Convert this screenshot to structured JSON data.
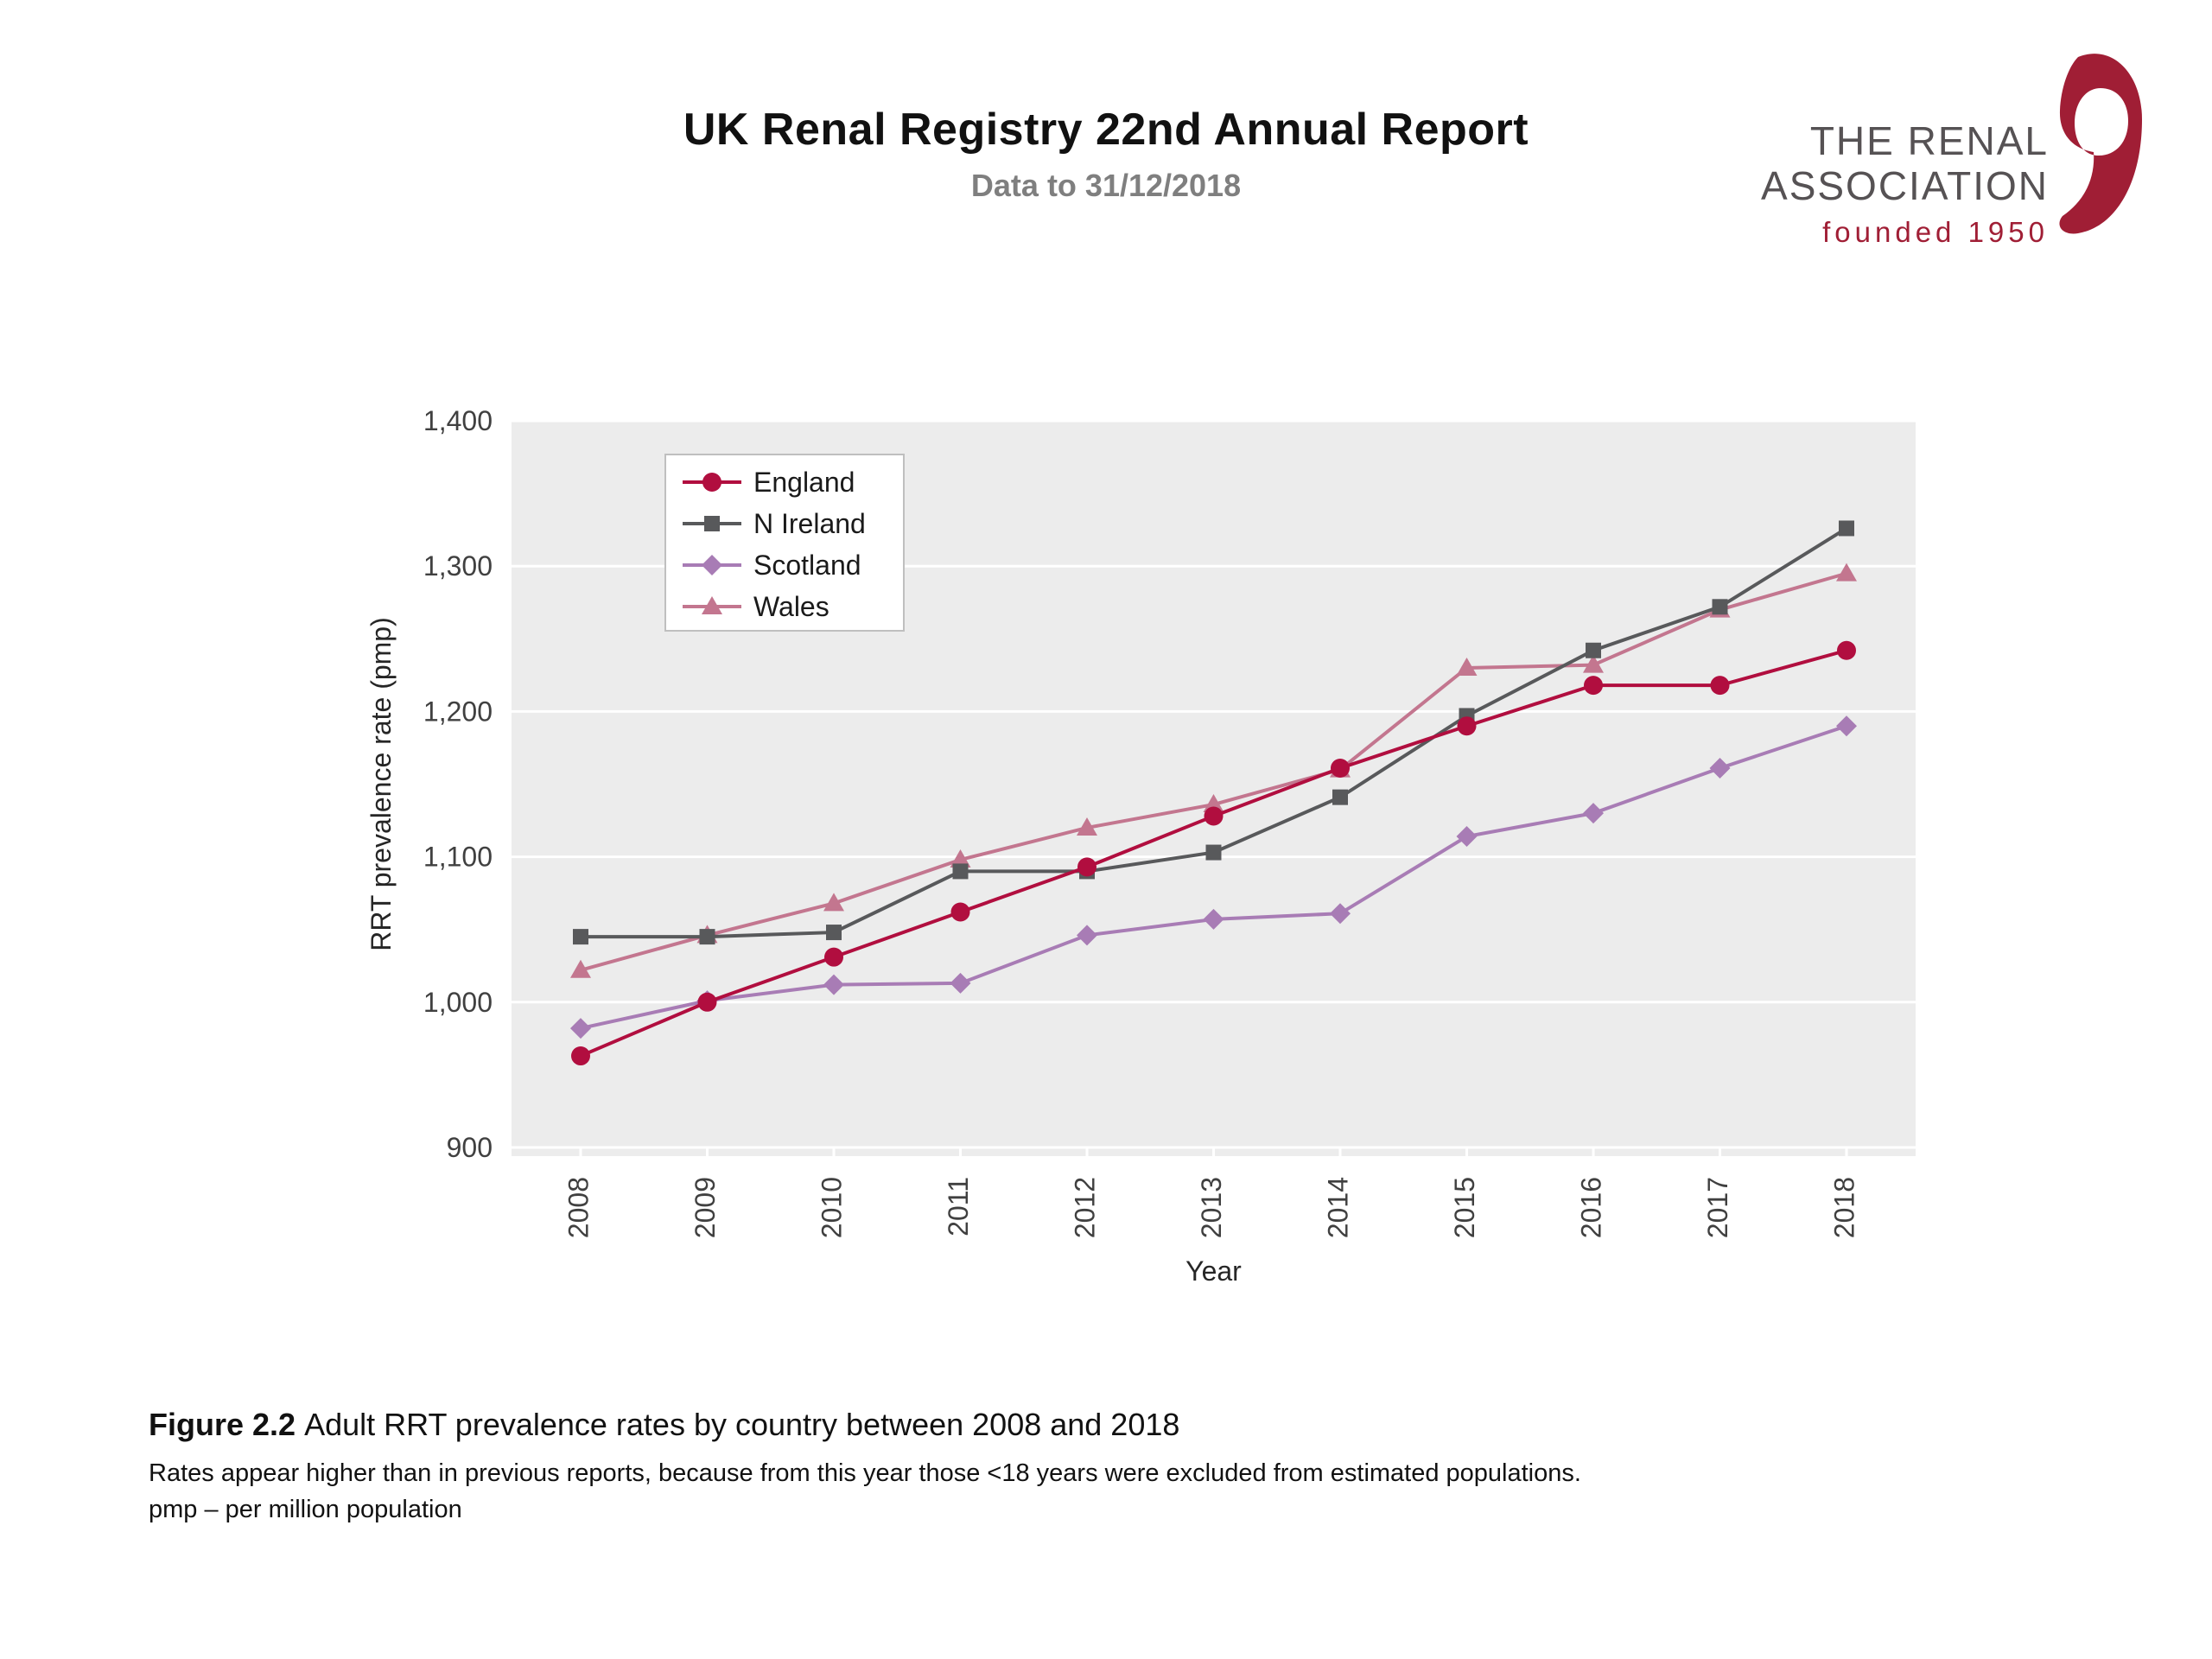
{
  "header": {
    "title": "UK Renal Registry 22nd Annual Report",
    "subtitle": "Data to 31/12/2018"
  },
  "logo": {
    "line1": "THE RENAL",
    "line2": "ASSOCIATION",
    "tagline": "founded 1950",
    "color": "#a01e35"
  },
  "chart_data": {
    "type": "line",
    "title": "",
    "xlabel": "Year",
    "ylabel": "RRT prevalence rate (pmp)",
    "x": [
      2008,
      2009,
      2010,
      2011,
      2012,
      2013,
      2014,
      2015,
      2016,
      2017,
      2018
    ],
    "ylim": [
      900,
      1400
    ],
    "yticks": [
      900,
      1000,
      1100,
      1200,
      1300,
      1400
    ],
    "grid": "horizontal-white-on-gray",
    "plot_background": "#ececec",
    "legend_position": "top-left-inside",
    "series": [
      {
        "name": "England",
        "marker": "circle",
        "color": "#b10e3f",
        "values": [
          963,
          1000,
          1031,
          1062,
          1093,
          1128,
          1161,
          1190,
          1218,
          1218,
          1242
        ]
      },
      {
        "name": "N Ireland",
        "marker": "square",
        "color": "#58595b",
        "values": [
          1045,
          1045,
          1048,
          1090,
          1090,
          1103,
          1141,
          1197,
          1242,
          1272,
          1326
        ]
      },
      {
        "name": "Scotland",
        "marker": "diamond",
        "color": "#a87cb5",
        "values": [
          982,
          1001,
          1012,
          1013,
          1046,
          1057,
          1061,
          1114,
          1130,
          1161,
          1190
        ]
      },
      {
        "name": "Wales",
        "marker": "triangle",
        "color": "#c3768f",
        "values": [
          1022,
          1046,
          1068,
          1098,
          1120,
          1136,
          1160,
          1230,
          1232,
          1270,
          1295
        ]
      }
    ]
  },
  "caption": {
    "figure_label": "Figure 2.2",
    "figure_text": "Adult RRT prevalence rates by country between 2008 and 2018",
    "note1": "Rates appear higher than in previous reports, because from this year those <18 years were excluded from estimated populations.",
    "note2": "pmp – per million population"
  }
}
